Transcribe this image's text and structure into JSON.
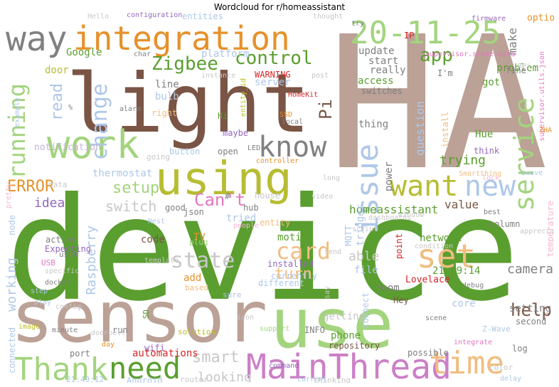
{
  "title": "Wordcloud for r/homeassistant",
  "words": [
    {
      "text": "device",
      "color": "#5a9e2f"
    },
    {
      "text": "HA",
      "color": "#bba196"
    },
    {
      "text": "light",
      "color": "#7a5545"
    },
    {
      "text": "sensor",
      "color": "#bba196"
    },
    {
      "text": "use",
      "color": "#a3d47e"
    },
    {
      "text": "integration",
      "color": "#e6912a"
    },
    {
      "text": "using",
      "color": "#b7bd33"
    },
    {
      "text": "work",
      "color": "#a3d47e"
    },
    {
      "text": "way",
      "color": "#808080"
    },
    {
      "text": "20-11-25",
      "color": "#a3d47e"
    },
    {
      "text": "MainThread",
      "color": "#cc7fc6"
    },
    {
      "text": "Thank",
      "color": "#a3d47e"
    },
    {
      "text": "need",
      "color": "#5a9e2f"
    },
    {
      "text": "time",
      "color": "#f0bd80"
    },
    {
      "text": "set",
      "color": "#f0bd80"
    },
    {
      "text": "new",
      "color": "#aec7e8"
    },
    {
      "text": "want",
      "color": "#b7bd33"
    },
    {
      "text": "issue",
      "color": "#aec7e8"
    },
    {
      "text": "know",
      "color": "#808080"
    },
    {
      "text": "service",
      "color": "#a3d47e"
    },
    {
      "text": "card",
      "color": "#f0bd80"
    },
    {
      "text": "state",
      "color": "#c7c7c7"
    },
    {
      "text": "running",
      "color": "#a3d47e"
    },
    {
      "text": "change",
      "color": "#aec7e8"
    },
    {
      "text": "control",
      "color": "#5a9e2f"
    },
    {
      "text": "Zigbee",
      "color": "#5a9e2f"
    },
    {
      "text": "app",
      "color": "#5a9e2f"
    },
    {
      "text": "help",
      "color": "#7a5545"
    },
    {
      "text": "Can't",
      "color": "#e377c2"
    },
    {
      "text": "setup",
      "color": "#a3d47e"
    },
    {
      "text": "turn",
      "color": "#f0bd80"
    },
    {
      "text": "smart",
      "color": "#c7c7c7"
    },
    {
      "text": "ERROR",
      "color": "#e6912a"
    },
    {
      "text": "Pi",
      "color": "#7a5545"
    },
    {
      "text": "read",
      "color": "#aec7e8"
    },
    {
      "text": "camera",
      "color": "#7f7f7f"
    },
    {
      "text": "trying",
      "color": "#5a9e2f"
    },
    {
      "text": "switch",
      "color": "#c7c7c7"
    },
    {
      "text": "looking",
      "color": "#c7c7c7"
    },
    {
      "text": "idea",
      "color": "#9467bd"
    },
    {
      "text": "Raspberry",
      "color": "#aec7e8"
    },
    {
      "text": "able",
      "color": "#c7c7c7"
    },
    {
      "text": "working",
      "color": "#aec7e8"
    },
    {
      "text": "value",
      "color": "#7a5545"
    },
    {
      "text": "question",
      "color": "#aec7e8"
    },
    {
      "text": "homeassistant",
      "color": "#5a9e2f"
    },
    {
      "text": "make",
      "color": "#7f7f7f"
    },
    {
      "text": "option",
      "color": "#e6912a"
    },
    {
      "text": "Google",
      "color": "#5a9e2f"
    },
    {
      "text": "door",
      "color": "#b7bd33"
    },
    {
      "text": "update",
      "color": "#7f7f7f"
    },
    {
      "text": "access",
      "color": "#5a9e2f"
    },
    {
      "text": "start",
      "color": "#7f7f7f"
    },
    {
      "text": "really",
      "color": "#7f7f7f"
    },
    {
      "text": "network",
      "color": "#5a9e2f"
    },
    {
      "text": "motion",
      "color": "#5a9e2f"
    },
    {
      "text": "setting",
      "color": "#7f7f7f"
    },
    {
      "text": "21:49:14",
      "color": "#5a9e2f"
    },
    {
      "text": "file",
      "color": "#aec7e8"
    },
    {
      "text": "code",
      "color": "#7a5545"
    },
    {
      "text": "add",
      "color": "#e6912a"
    },
    {
      "text": "room",
      "color": "#7f7f7f"
    },
    {
      "text": "thing",
      "color": "#7f7f7f"
    },
    {
      "text": "bulb",
      "color": "#aec7e8"
    },
    {
      "text": "line",
      "color": "#7f7f7f"
    },
    {
      "text": "Hue",
      "color": "#5a9e2f"
    },
    {
      "text": "problem",
      "color": "#5a9e2f"
    },
    {
      "text": "got",
      "color": "#5a9e2f"
    },
    {
      "text": "fine",
      "color": "#7f7f7f"
    },
    {
      "text": "core",
      "color": "#aec7e8"
    },
    {
      "text": "Lovelace",
      "color": "#d62728"
    },
    {
      "text": "phone",
      "color": "#5a9e2f"
    },
    {
      "text": "getting",
      "color": "#c7c7c7"
    },
    {
      "text": "automations",
      "color": "#d62728"
    },
    {
      "text": "run",
      "color": "#7f7f7f"
    },
    {
      "text": "second",
      "color": "#7f7f7f"
    },
    {
      "text": "log",
      "color": "#7f7f7f"
    },
    {
      "text": "possible",
      "color": "#7f7f7f"
    },
    {
      "text": "repository",
      "color": "#7a5545"
    },
    {
      "text": "TV",
      "color": "#e6912a"
    },
    {
      "text": "power",
      "color": "#7f7f7f"
    },
    {
      "text": "trigger",
      "color": "#aec7e8"
    },
    {
      "text": "MQTT",
      "color": "#aec7e8"
    },
    {
      "text": "thermostat",
      "color": "#aec7e8"
    },
    {
      "text": "platform",
      "color": "#aec7e8"
    },
    {
      "text": "configuration",
      "color": "#9467bd"
    },
    {
      "text": "entities",
      "color": "#aec7e8"
    },
    {
      "text": "server",
      "color": "#aec7e8"
    },
    {
      "text": "WARNING",
      "color": "#d62728"
    },
    {
      "text": "supervisor.store.data",
      "color": "#e377c2"
    },
    {
      "text": "supervisor.utils.json",
      "color": "#e377c2"
    },
    {
      "text": "firmware",
      "color": "#9467bd"
    },
    {
      "text": "temperature",
      "color": "#f7b6d2"
    },
    {
      "text": "Smartthing",
      "color": "#f0bd80"
    },
    {
      "text": "zwave",
      "color": "#aec7e8"
    },
    {
      "text": "Z-Wave",
      "color": "#aec7e8"
    },
    {
      "text": "notification",
      "color": "#c5b0d5"
    },
    {
      "text": "data",
      "color": "#c7c7c7"
    },
    {
      "text": "node",
      "color": "#aec7e8"
    },
    {
      "text": "action",
      "color": "#7f7f7f"
    },
    {
      "text": "Expecting",
      "color": "#9467bd"
    },
    {
      "text": "USB",
      "color": "#e377c2"
    },
    {
      "text": "specific",
      "color": "#c7c7c7"
    },
    {
      "text": "docker",
      "color": "#7f7f7f"
    },
    {
      "text": "connected",
      "color": "#aec7e8"
    },
    {
      "text": "port",
      "color": "#7f7f7f"
    },
    {
      "text": "21:49:12",
      "color": "#aec7e8"
    },
    {
      "text": "Android",
      "color": "#aec7e8"
    },
    {
      "text": "router",
      "color": "#c7c7c7"
    },
    {
      "text": "wifi",
      "color": "#9467bd"
    },
    {
      "text": "solution",
      "color": "#bcbd22"
    },
    {
      "text": "SD",
      "color": "#5a9e2f"
    },
    {
      "text": "INFO",
      "color": "#7f7f7f"
    },
    {
      "text": "different",
      "color": "#aec7e8"
    },
    {
      "text": "currently",
      "color": "#aec7e8"
    },
    {
      "text": "installed",
      "color": "#9467bd"
    },
    {
      "text": "json",
      "color": "#7f7f7f"
    },
    {
      "text": "good",
      "color": "#7f7f7f"
    },
    {
      "text": "hub",
      "color": "#7f7f7f"
    },
    {
      "text": "house",
      "color": "#c7c7c7"
    },
    {
      "text": "tried",
      "color": "#aec7e8"
    },
    {
      "text": "entity",
      "color": "#f0bd80"
    },
    {
      "text": "open",
      "color": "#7f7f7f"
    },
    {
      "text": "button",
      "color": "#aec7e8"
    },
    {
      "text": "maybe",
      "color": "#9467bd"
    },
    {
      "text": "Hi",
      "color": "#5a9e2f"
    },
    {
      "text": "Nest",
      "color": "#aec7e8"
    },
    {
      "text": "plug",
      "color": "#a3d47e"
    },
    {
      "text": "used",
      "color": "#7f7f7f"
    },
    {
      "text": "based",
      "color": "#f0bd80"
    },
    {
      "text": "switches",
      "color": "#7f7f7f"
    },
    {
      "text": "I'm",
      "color": "#7f7f7f"
    },
    {
      "text": "install",
      "color": "#f0bd80"
    },
    {
      "text": "IP",
      "color": "#d62728"
    },
    {
      "text": "think",
      "color": "#9467bd"
    },
    {
      "text": "column",
      "color": "#7f7f7f"
    },
    {
      "text": "condition",
      "color": "#c7c7c7"
    },
    {
      "text": "point",
      "color": "#d62728"
    },
    {
      "text": "window",
      "color": "#c7c7c7"
    },
    {
      "text": "best",
      "color": "#7f7f7f"
    },
    {
      "text": "appreciated",
      "color": "#c7c7c7"
    },
    {
      "text": "Hey",
      "color": "#7a5545"
    },
    {
      "text": "connect",
      "color": "#aec7e8"
    },
    {
      "text": "scene",
      "color": "#7f7f7f"
    },
    {
      "text": "color",
      "color": "#c7c7c7"
    },
    {
      "text": "delay",
      "color": "#aec7e8"
    },
    {
      "text": "integrate",
      "color": "#e377c2"
    },
    {
      "text": "debug",
      "color": "#7f7f7f"
    },
    {
      "text": "say",
      "color": "#c7c7c7"
    },
    {
      "text": "thinking",
      "color": "#c7c7c7"
    },
    {
      "text": "command",
      "color": "#9467bd"
    },
    {
      "text": "current",
      "color": "#aec7e8"
    },
    {
      "text": "sure",
      "color": "#aec7e8"
    },
    {
      "text": "support",
      "color": "#a3d47e"
    },
    {
      "text": "icon",
      "color": "#c7c7c7"
    },
    {
      "text": "doorbell",
      "color": "#c7c7c7"
    },
    {
      "text": "day",
      "color": "#e6912a"
    },
    {
      "text": "minute",
      "color": "#7f7f7f"
    },
    {
      "text": "image",
      "color": "#bcbd22"
    },
    {
      "text": "play",
      "color": "#aec7e8"
    },
    {
      "text": "config",
      "color": "#c7c7c7"
    },
    {
      "text": "step",
      "color": "#aec7e8"
    },
    {
      "text": "template",
      "color": "#c7c7c7"
    },
    {
      "text": "people",
      "color": "#f7b6d2"
    },
    {
      "text": "video",
      "color": "#c7c7c7"
    },
    {
      "text": "long",
      "color": "#c7c7c7"
    },
    {
      "text": "lock",
      "color": "#f7b6d2"
    },
    {
      "text": "dashboards",
      "color": "#c7c7c7"
    },
    {
      "text": "script",
      "color": "#c7c7c7"
    },
    {
      "text": "controller",
      "color": "#e6912a"
    },
    {
      "text": "LED",
      "color": "#7f7f7f"
    },
    {
      "text": "local",
      "color": "#7f7f7f"
    },
    {
      "text": "SSD",
      "color": "#e6912a"
    },
    {
      "text": "HomeKit",
      "color": "#d62728"
    },
    {
      "text": "alarm",
      "color": "#7f7f7f"
    },
    {
      "text": "right",
      "color": "#f0bd80"
    },
    {
      "text": "char",
      "color": "#7f7f7f"
    },
    {
      "text": "instance",
      "color": "#c7c7c7"
    },
    {
      "text": "thought",
      "color": "#c7c7c7"
    },
    {
      "text": "try",
      "color": "#7f7f7f"
    },
    {
      "text": "going",
      "color": "#c7c7c7"
    },
    {
      "text": "ZHA",
      "color": "#e6912a"
    },
    {
      "text": "RPi",
      "color": "#c7c7c7"
    },
    {
      "text": "Hello",
      "color": "#c7c7c7"
    },
    {
      "text": "post",
      "color": "#c7c7c7"
    },
    {
      "text": "send",
      "color": "#c7c7c7"
    },
    {
      "text": "entity_id",
      "color": "#bcbd22"
    },
    {
      "text": "pretty",
      "color": "#f7b6d2"
    },
    {
      "text": "example",
      "color": "#aec7e8"
    },
    {
      "text": "%",
      "color": "#7f7f7f"
    },
    {
      "text": "#",
      "color": "#7f7f7f"
    }
  ]
}
